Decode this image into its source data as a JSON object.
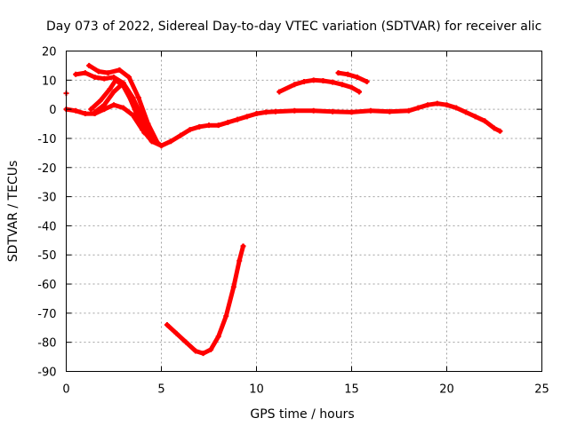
{
  "chart_data": {
    "type": "scatter",
    "title": "Day 073 of 2022, Sidereal Day-to-day VTEC variation (SDTVAR) for receiver alic",
    "xlabel": "GPS time / hours",
    "ylabel": "SDTVAR / TECUs",
    "xlim": [
      0,
      25
    ],
    "ylim": [
      -90,
      20
    ],
    "xticks": [
      0,
      5,
      10,
      15,
      20,
      25
    ],
    "yticks": [
      20,
      10,
      0,
      -10,
      -20,
      -30,
      -40,
      -50,
      -60,
      -70,
      -80,
      -90
    ],
    "grid": true,
    "color": "#ff0000",
    "series": [
      {
        "name": "main-trace",
        "points": [
          [
            0.0,
            0.0
          ],
          [
            0.5,
            -0.5
          ],
          [
            1.0,
            -1.5
          ],
          [
            1.5,
            -1.5
          ],
          [
            2.0,
            0.0
          ],
          [
            2.5,
            1.5
          ],
          [
            3.0,
            0.5
          ],
          [
            3.5,
            -2.0
          ],
          [
            4.0,
            -7.0
          ],
          [
            4.5,
            -11.0
          ],
          [
            5.0,
            -12.5
          ],
          [
            5.5,
            -11.0
          ],
          [
            6.0,
            -9.0
          ],
          [
            6.5,
            -7.0
          ],
          [
            7.0,
            -6.0
          ],
          [
            7.5,
            -5.5
          ],
          [
            8.0,
            -5.5
          ],
          [
            8.5,
            -4.5
          ],
          [
            9.0,
            -3.5
          ],
          [
            9.5,
            -2.5
          ],
          [
            10.0,
            -1.5
          ],
          [
            10.5,
            -1.0
          ],
          [
            11.0,
            -0.8
          ],
          [
            12.0,
            -0.5
          ],
          [
            13.0,
            -0.5
          ],
          [
            14.0,
            -0.8
          ],
          [
            15.0,
            -1.0
          ],
          [
            16.0,
            -0.5
          ],
          [
            17.0,
            -0.8
          ],
          [
            18.0,
            -0.5
          ],
          [
            18.5,
            0.5
          ],
          [
            19.0,
            1.5
          ],
          [
            19.5,
            2.0
          ],
          [
            20.0,
            1.5
          ],
          [
            20.5,
            0.5
          ],
          [
            21.0,
            -1.0
          ],
          [
            21.5,
            -2.5
          ],
          [
            22.0,
            -4.0
          ],
          [
            22.5,
            -6.5
          ],
          [
            22.8,
            -7.5
          ]
        ]
      },
      {
        "name": "early-loop-1",
        "points": [
          [
            0.5,
            12.0
          ],
          [
            1.0,
            12.5
          ],
          [
            1.5,
            11.0
          ],
          [
            2.0,
            10.5
          ],
          [
            2.5,
            11.0
          ],
          [
            3.0,
            9.0
          ],
          [
            3.5,
            4.0
          ],
          [
            4.0,
            -3.0
          ],
          [
            4.5,
            -10.0
          ],
          [
            5.0,
            -12.5
          ]
        ]
      },
      {
        "name": "early-loop-2",
        "points": [
          [
            1.2,
            15.0
          ],
          [
            1.7,
            13.0
          ],
          [
            2.2,
            12.5
          ],
          [
            2.8,
            13.5
          ],
          [
            3.3,
            11.0
          ],
          [
            3.8,
            4.0
          ],
          [
            4.3,
            -5.0
          ],
          [
            4.8,
            -11.5
          ]
        ]
      },
      {
        "name": "early-loop-3",
        "points": [
          [
            1.3,
            0.0
          ],
          [
            1.8,
            3.0
          ],
          [
            2.3,
            7.0
          ],
          [
            2.6,
            10.0
          ],
          [
            3.0,
            8.0
          ],
          [
            3.5,
            2.0
          ],
          [
            4.0,
            -6.0
          ],
          [
            4.5,
            -11.0
          ]
        ]
      },
      {
        "name": "early-loop-4",
        "points": [
          [
            1.5,
            -1.0
          ],
          [
            2.0,
            1.5
          ],
          [
            2.5,
            6.0
          ],
          [
            3.0,
            9.0
          ],
          [
            3.2,
            6.0
          ],
          [
            3.6,
            0.0
          ],
          [
            4.1,
            -8.0
          ]
        ]
      },
      {
        "name": "mid-arc",
        "points": [
          [
            11.2,
            6.0
          ],
          [
            12.0,
            8.5
          ],
          [
            12.5,
            9.5
          ],
          [
            13.0,
            10.0
          ],
          [
            13.5,
            9.8
          ],
          [
            14.0,
            9.3
          ],
          [
            14.5,
            8.5
          ],
          [
            15.0,
            7.5
          ],
          [
            15.4,
            6.0
          ]
        ]
      },
      {
        "name": "short-arc",
        "points": [
          [
            14.3,
            12.5
          ],
          [
            14.8,
            12.0
          ],
          [
            15.3,
            11.0
          ],
          [
            15.8,
            9.5
          ]
        ]
      },
      {
        "name": "low-arc",
        "points": [
          [
            5.3,
            -74.0
          ],
          [
            5.8,
            -77.0
          ],
          [
            6.3,
            -80.0
          ],
          [
            6.8,
            -83.0
          ],
          [
            7.2,
            -83.8
          ],
          [
            7.6,
            -82.5
          ],
          [
            8.0,
            -78.0
          ],
          [
            8.4,
            -71.0
          ],
          [
            8.8,
            -61.0
          ],
          [
            9.1,
            -52.0
          ],
          [
            9.3,
            -47.0
          ]
        ]
      },
      {
        "name": "outlier",
        "points": [
          [
            0.0,
            5.5
          ]
        ]
      }
    ]
  }
}
